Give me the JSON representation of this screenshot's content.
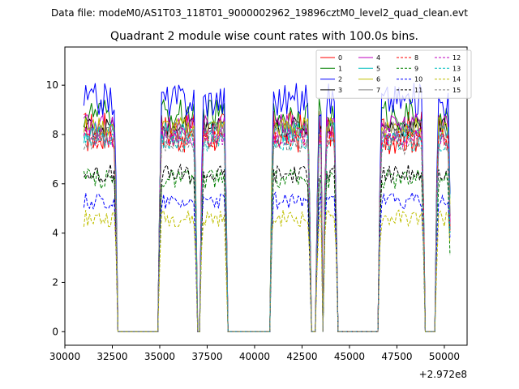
{
  "chart_data": {
    "type": "line",
    "suptitle": "Data file: modeM0/AS1T03_118T01_9000002962_19896cztM0_level2_quad_clean.evt",
    "title": "Quadrant 2 module wise count rates with 100.0s bins.",
    "xlabel": "",
    "ylabel": "",
    "x_offset_label": "+2.972e8",
    "xlim": [
      30000,
      51200
    ],
    "ylim": [
      -0.55,
      11.55
    ],
    "xticks": [
      30000,
      32500,
      35000,
      37500,
      40000,
      42500,
      45000,
      47500,
      50000
    ],
    "xtick_labels": [
      "30000",
      "32500",
      "35000",
      "37500",
      "40000",
      "42500",
      "45000",
      "47500",
      "50000"
    ],
    "yticks": [
      0,
      2,
      4,
      6,
      8,
      10
    ],
    "ytick_labels": [
      "0",
      "2",
      "4",
      "6",
      "8",
      "10"
    ],
    "grid": false,
    "legend_position": "top-right",
    "legend_columns": 4,
    "segments": [
      {
        "type": "on",
        "from": 31000,
        "to": 32700
      },
      {
        "type": "gap",
        "from": 32800,
        "to": 34900
      },
      {
        "type": "on",
        "from": 35000,
        "to": 36900
      },
      {
        "type": "gap",
        "from": 37000,
        "to": 37100
      },
      {
        "type": "on",
        "from": 37200,
        "to": 38500
      },
      {
        "type": "gap",
        "from": 38600,
        "to": 40800
      },
      {
        "type": "on",
        "from": 40900,
        "to": 42900
      },
      {
        "type": "gap",
        "from": 43000,
        "to": 43200
      },
      {
        "type": "on",
        "from": 43300,
        "to": 43500
      },
      {
        "type": "gap",
        "from": 43600,
        "to": 43600
      },
      {
        "type": "on",
        "from": 43700,
        "to": 44300
      },
      {
        "type": "gap",
        "from": 44400,
        "to": 46500
      },
      {
        "type": "on",
        "from": 46600,
        "to": 48900
      },
      {
        "type": "gap",
        "from": 49000,
        "to": 49500
      },
      {
        "type": "on",
        "from": 49600,
        "to": 50300
      }
    ],
    "series": [
      {
        "name": "0",
        "color": "#ff0000",
        "dash": "solid",
        "level": 8.1,
        "amp": 0.9
      },
      {
        "name": "1",
        "color": "#008000",
        "dash": "solid",
        "level": 8.8,
        "amp": 0.65
      },
      {
        "name": "2",
        "color": "#0000ff",
        "dash": "solid",
        "level": 9.4,
        "amp": 0.7
      },
      {
        "name": "3",
        "color": "#000000",
        "dash": "solid",
        "level": 8.3,
        "amp": 0.4
      },
      {
        "name": "4",
        "color": "#bf00bf",
        "dash": "solid",
        "level": 8.4,
        "amp": 0.45
      },
      {
        "name": "5",
        "color": "#00bfbf",
        "dash": "solid",
        "level": 8.1,
        "amp": 0.45
      },
      {
        "name": "6",
        "color": "#bfbf00",
        "dash": "solid",
        "level": 8.3,
        "amp": 0.4
      },
      {
        "name": "7",
        "color": "#808080",
        "dash": "solid",
        "level": 8.2,
        "amp": 0.4
      },
      {
        "name": "8",
        "color": "#ff0000",
        "dash": "dashed",
        "level": 7.8,
        "amp": 0.4
      },
      {
        "name": "9",
        "color": "#008000",
        "dash": "dashed",
        "level": 6.2,
        "amp": 0.4
      },
      {
        "name": "10",
        "color": "#0000ff",
        "dash": "dashed",
        "level": 5.3,
        "amp": 0.35
      },
      {
        "name": "11",
        "color": "#000000",
        "dash": "dashed",
        "level": 6.4,
        "amp": 0.4
      },
      {
        "name": "12",
        "color": "#bf00bf",
        "dash": "dashed",
        "level": 7.9,
        "amp": 0.4
      },
      {
        "name": "13",
        "color": "#00bfbf",
        "dash": "dashed",
        "level": 7.7,
        "amp": 0.4
      },
      {
        "name": "14",
        "color": "#bfbf00",
        "dash": "dashed",
        "level": 4.6,
        "amp": 0.35
      },
      {
        "name": "15",
        "color": "#808080",
        "dash": "dashed",
        "level": 7.6,
        "amp": 0.4
      }
    ]
  }
}
